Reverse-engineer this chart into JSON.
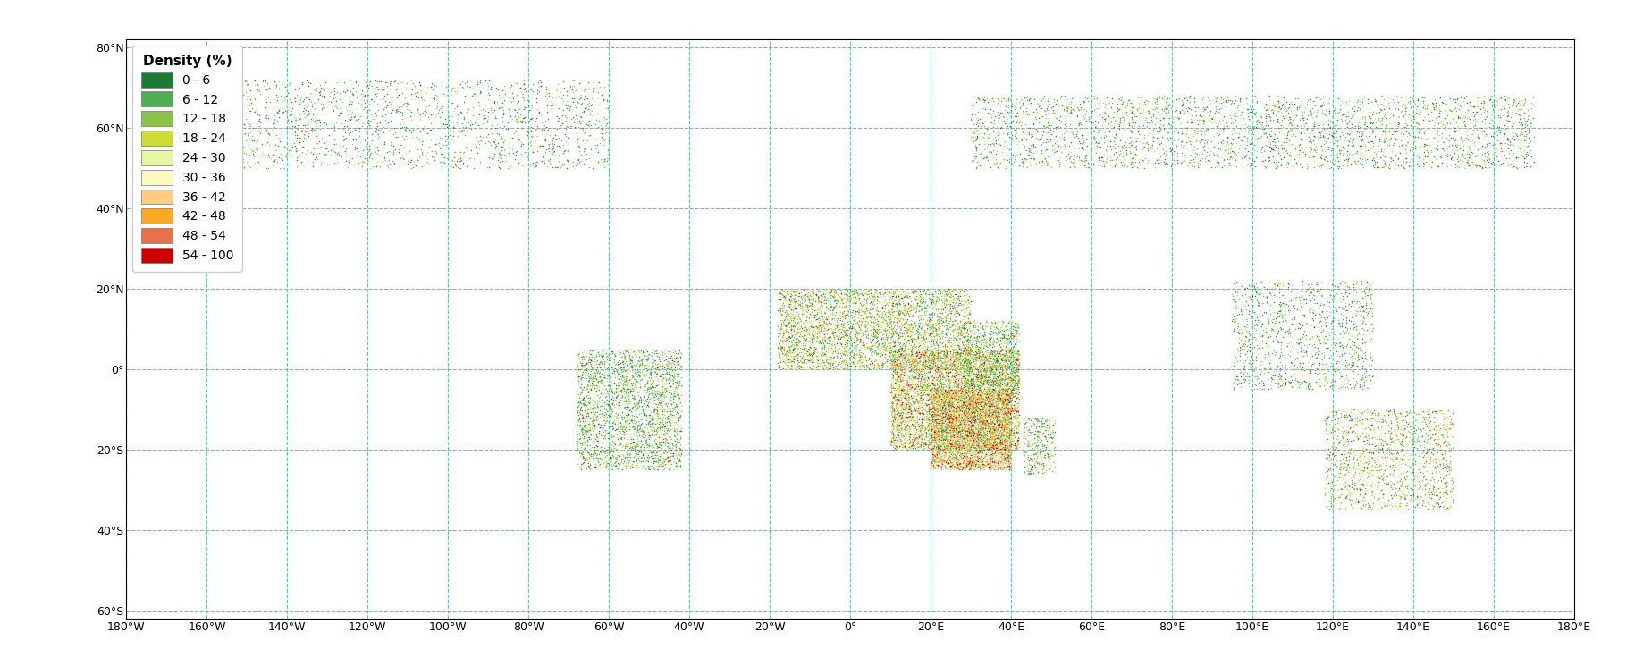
{
  "map_extent": [
    -180,
    180,
    -62,
    82
  ],
  "x_ticks": [
    -180,
    -160,
    -140,
    -120,
    -100,
    -80,
    -60,
    -40,
    -20,
    0,
    20,
    40,
    60,
    80,
    100,
    120,
    140,
    160,
    180
  ],
  "y_ticks": [
    -60,
    -40,
    -20,
    0,
    20,
    40,
    60,
    80
  ],
  "grid_color": "#00DDDD",
  "grid_alpha": 0.7,
  "land_color": "#FFFFFF",
  "coastline_color": "#888888",
  "coastline_linewidth": 0.5,
  "border_color": "#AAAAAA",
  "border_linewidth": 0.3,
  "background_color": "#FFFFFF",
  "legend_title": "Density (%)",
  "legend_labels": [
    "0 - 6",
    "6 - 12",
    "12 - 18",
    "18 - 24",
    "24 - 30",
    "30 - 36",
    "36 - 42",
    "42 - 48",
    "48 - 54",
    "54 - 100"
  ],
  "legend_colors": [
    "#1A7B35",
    "#4CAF50",
    "#8BC34A",
    "#CDDC39",
    "#E8F5A3",
    "#FFF9C4",
    "#FFCC80",
    "#FFA726",
    "#E8704A",
    "#CC0000"
  ],
  "tick_fontsize": 9,
  "figsize": [
    18.29,
    7.36
  ],
  "dpi": 100
}
